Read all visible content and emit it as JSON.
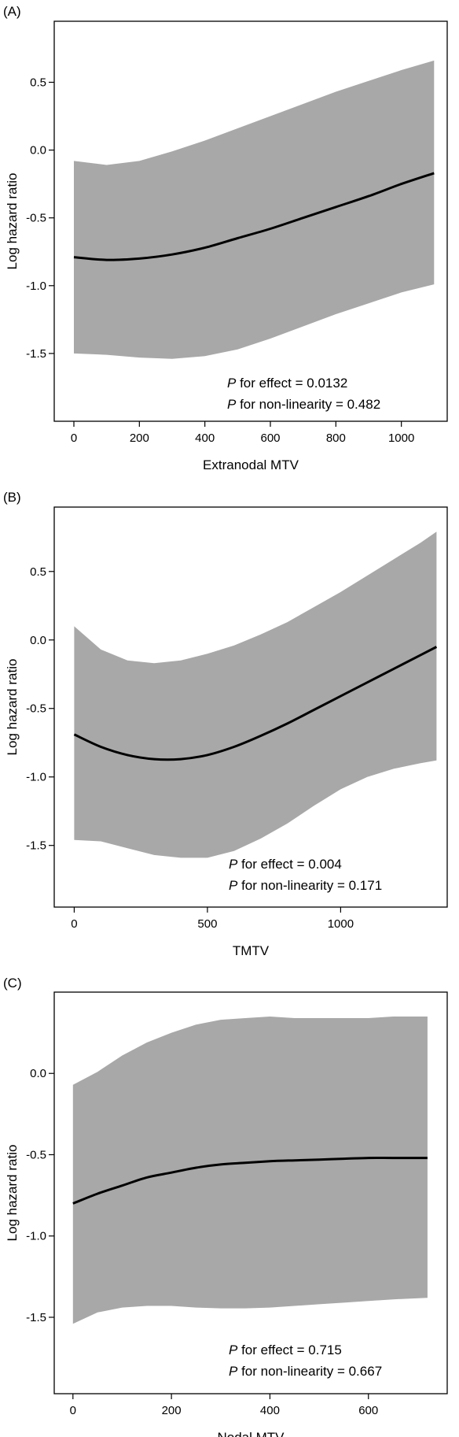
{
  "chart_data": [
    {
      "type": "line",
      "panel_label": "(A)",
      "xlabel": "Extranodal MTV",
      "ylabel": "Log hazard ratio",
      "xlim": [
        -60,
        1140
      ],
      "ylim": [
        -2.0,
        0.95
      ],
      "x_ticks": [
        0,
        200,
        400,
        600,
        800,
        1000
      ],
      "y_ticks": [
        0.5,
        0.0,
        -0.5,
        -1.0,
        -1.5
      ],
      "y_tick_labels": [
        "0.5",
        "0.0",
        "-0.5",
        "-1.0",
        "-1.5"
      ],
      "annotations": [
        {
          "prefix": "P",
          "text": " for effect = 0.0132"
        },
        {
          "prefix": "P",
          "text": " for non-linearity = 0.482"
        }
      ],
      "band_color": "#a8a8a8",
      "line_color": "#000000",
      "series": [
        {
          "role": "estimate",
          "x": [
            0,
            100,
            200,
            300,
            400,
            500,
            600,
            700,
            800,
            900,
            1000,
            1100
          ],
          "y": [
            -0.79,
            -0.81,
            -0.8,
            -0.77,
            -0.72,
            -0.65,
            -0.58,
            -0.5,
            -0.42,
            -0.34,
            -0.25,
            -0.17
          ]
        },
        {
          "role": "upper",
          "x": [
            0,
            100,
            200,
            300,
            400,
            500,
            600,
            700,
            800,
            900,
            1000,
            1100
          ],
          "y": [
            -0.08,
            -0.11,
            -0.08,
            -0.01,
            0.07,
            0.16,
            0.25,
            0.34,
            0.43,
            0.51,
            0.59,
            0.66
          ]
        },
        {
          "role": "lower",
          "x": [
            0,
            100,
            200,
            300,
            400,
            500,
            600,
            700,
            800,
            900,
            1000,
            1100
          ],
          "y": [
            -1.5,
            -1.51,
            -1.53,
            -1.54,
            -1.52,
            -1.47,
            -1.39,
            -1.3,
            -1.21,
            -1.13,
            -1.05,
            -0.99
          ]
        }
      ]
    },
    {
      "type": "line",
      "panel_label": "(B)",
      "xlabel": "TMTV",
      "ylabel": "Log hazard ratio",
      "xlim": [
        -75,
        1400
      ],
      "ylim": [
        -1.95,
        0.97
      ],
      "x_ticks": [
        0,
        500,
        1000
      ],
      "y_ticks": [
        0.5,
        0.0,
        -0.5,
        -1.0,
        -1.5
      ],
      "y_tick_labels": [
        "0.5",
        "0.0",
        "-0.5",
        "-1.0",
        "-1.5"
      ],
      "annotations": [
        {
          "prefix": "P",
          "text": " for effect = 0.004"
        },
        {
          "prefix": "P",
          "text": " for non-linearity = 0.171"
        }
      ],
      "band_color": "#a8a8a8",
      "line_color": "#000000",
      "series": [
        {
          "role": "estimate",
          "x": [
            0,
            100,
            200,
            300,
            400,
            500,
            600,
            700,
            800,
            900,
            1000,
            1100,
            1200,
            1300,
            1360
          ],
          "y": [
            -0.69,
            -0.78,
            -0.84,
            -0.87,
            -0.87,
            -0.84,
            -0.78,
            -0.7,
            -0.61,
            -0.51,
            -0.41,
            -0.31,
            -0.21,
            -0.11,
            -0.05
          ]
        },
        {
          "role": "upper",
          "x": [
            0,
            100,
            200,
            300,
            400,
            500,
            600,
            700,
            800,
            900,
            1000,
            1100,
            1200,
            1300,
            1360
          ],
          "y": [
            0.1,
            -0.07,
            -0.15,
            -0.17,
            -0.15,
            -0.1,
            -0.04,
            0.04,
            0.13,
            0.24,
            0.35,
            0.47,
            0.59,
            0.71,
            0.79
          ]
        },
        {
          "role": "lower",
          "x": [
            0,
            100,
            200,
            300,
            400,
            500,
            600,
            700,
            800,
            900,
            1000,
            1100,
            1200,
            1300,
            1360
          ],
          "y": [
            -1.46,
            -1.47,
            -1.52,
            -1.57,
            -1.59,
            -1.59,
            -1.54,
            -1.45,
            -1.34,
            -1.21,
            -1.09,
            -1.0,
            -0.94,
            -0.9,
            -0.88
          ]
        }
      ]
    },
    {
      "type": "line",
      "panel_label": "(C)",
      "xlabel": "Nodal MTV",
      "ylabel": "Log hazard ratio",
      "xlim": [
        -38,
        760
      ],
      "ylim": [
        -1.97,
        0.5
      ],
      "x_ticks": [
        0,
        200,
        400,
        600
      ],
      "y_ticks": [
        0.0,
        -0.5,
        -1.0,
        -1.5
      ],
      "y_tick_labels": [
        "0.0",
        "-0.5",
        "-1.0",
        "-1.5"
      ],
      "annotations": [
        {
          "prefix": "P",
          "text": " for effect = 0.715"
        },
        {
          "prefix": "P",
          "text": " for non-linearity = 0.667"
        }
      ],
      "band_color": "#a8a8a8",
      "line_color": "#000000",
      "series": [
        {
          "role": "estimate",
          "x": [
            0,
            50,
            100,
            150,
            200,
            250,
            300,
            350,
            400,
            450,
            500,
            550,
            600,
            650,
            720
          ],
          "y": [
            -0.8,
            -0.74,
            -0.69,
            -0.64,
            -0.61,
            -0.58,
            -0.56,
            -0.55,
            -0.54,
            -0.535,
            -0.53,
            -0.525,
            -0.52,
            -0.52,
            -0.52
          ]
        },
        {
          "role": "upper",
          "x": [
            0,
            50,
            100,
            150,
            200,
            250,
            300,
            350,
            400,
            450,
            500,
            550,
            600,
            650,
            720
          ],
          "y": [
            -0.07,
            0.01,
            0.11,
            0.19,
            0.25,
            0.3,
            0.33,
            0.34,
            0.35,
            0.34,
            0.34,
            0.34,
            0.34,
            0.35,
            0.35
          ]
        },
        {
          "role": "lower",
          "x": [
            0,
            50,
            100,
            150,
            200,
            250,
            300,
            350,
            400,
            450,
            500,
            550,
            600,
            650,
            720
          ],
          "y": [
            -1.54,
            -1.47,
            -1.44,
            -1.43,
            -1.43,
            -1.44,
            -1.445,
            -1.445,
            -1.44,
            -1.43,
            -1.42,
            -1.41,
            -1.4,
            -1.39,
            -1.38
          ]
        }
      ]
    }
  ]
}
